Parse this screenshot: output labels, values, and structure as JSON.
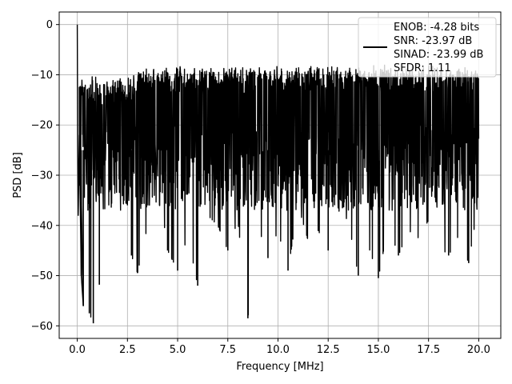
{
  "chart_data": {
    "type": "line",
    "title": "",
    "xlabel": "Frequency [MHz]",
    "ylabel": "PSD [dB]",
    "xlim": [
      -0.9,
      21.1
    ],
    "ylim": [
      -62.5,
      2.5
    ],
    "x_ticks": [
      0.0,
      2.5,
      5.0,
      7.5,
      10.0,
      12.5,
      15.0,
      17.5,
      20.0
    ],
    "x_tick_labels": [
      "0.0",
      "2.5",
      "5.0",
      "7.5",
      "10.0",
      "12.5",
      "15.0",
      "17.5",
      "20.0"
    ],
    "y_ticks": [
      0,
      -10,
      -20,
      -30,
      -40,
      -50,
      -60
    ],
    "y_tick_labels": [
      "0",
      "−10",
      "−20",
      "−30",
      "−40",
      "−50",
      "−60"
    ],
    "grid": true,
    "legend_position": "top-right",
    "series": [
      {
        "name": "ENOB: -4.28 bits\nSNR: -23.97 dB\nSINAD: -23.99 dB\nSFDR: 1.11",
        "legend_lines": [
          "ENOB: -4.28 bits",
          "SNR: -23.97 dB",
          "SINAD: -23.99 dB",
          "SFDR: 1.11"
        ],
        "color": "#000000",
        "x": [
          0.0,
          0.02,
          0.05,
          0.1,
          0.2,
          0.3,
          0.4,
          0.5,
          0.6,
          0.8,
          1.0,
          1.1,
          1.3,
          1.6,
          1.8,
          2.0,
          2.3,
          2.7,
          3.0,
          3.3,
          3.7,
          4.0,
          4.5,
          5.0,
          5.5,
          6.0,
          6.5,
          7.0,
          7.5,
          8.0,
          8.5,
          9.0,
          9.5,
          10.0,
          10.5,
          11.0,
          11.5,
          12.0,
          12.5,
          13.0,
          13.5,
          14.0,
          14.5,
          15.0,
          15.5,
          16.0,
          16.5,
          17.0,
          17.5,
          18.0,
          18.5,
          19.0,
          19.5,
          20.0
        ],
        "y": [
          0.0,
          -24.0,
          -38.0,
          -22.0,
          -50.0,
          -56.0,
          -42.0,
          -24.0,
          -57.5,
          -59.5,
          -28.0,
          -51.8,
          -20.0,
          -42.0,
          -16.0,
          -38.0,
          -41.0,
          -46.0,
          -49.5,
          -44.0,
          -36.0,
          -30.0,
          -45.0,
          -49.0,
          -42.0,
          -52.0,
          -38.0,
          -40.0,
          -45.0,
          -39.0,
          -58.5,
          -40.0,
          -46.5,
          -41.0,
          -49.0,
          -36.0,
          -43.0,
          -41.0,
          -45.0,
          -37.0,
          -39.0,
          -50.0,
          -44.0,
          -50.5,
          -40.0,
          -46.0,
          -41.0,
          -42.5,
          -39.0,
          -44.0,
          -46.0,
          -42.0,
          -47.5,
          -35.0
        ]
      }
    ]
  }
}
